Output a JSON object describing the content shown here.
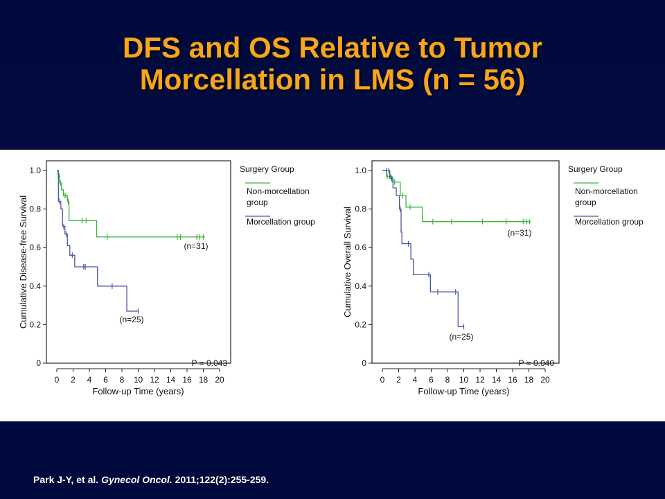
{
  "slide": {
    "title_line1": "DFS and OS Relative to Tumor",
    "title_line2": "Morcellation in LMS (n = 56)",
    "citation_pre": "Park J-Y, et al. ",
    "citation_journal": "Gynecol Oncol.",
    "citation_post": " 2011;122(2):255-259."
  },
  "colors": {
    "title": "#f7a51c",
    "background": "#00073a",
    "non_morcellation": "#3cb53c",
    "morcellation": "#4a55a8"
  },
  "chart_data": [
    {
      "type": "line",
      "step": true,
      "ylabel": "Cumulative Disease-free Survival",
      "xlabel": "Follow-up Time (years)",
      "xlim": [
        0,
        20
      ],
      "ylim": [
        0,
        1.0
      ],
      "x_ticks": [
        "0",
        "2",
        "4",
        "6",
        "8",
        "10",
        "12",
        "14",
        "16",
        "18",
        "20"
      ],
      "y_ticks": [
        "0",
        "0.2",
        "0.4",
        "0.6",
        "0.8",
        "1.0"
      ],
      "legend_title": "Surgery Group",
      "p_value": "P = 0.043",
      "series": [
        {
          "name": "Non-morcellation group",
          "color": "non_morcellation",
          "n_label": "(n=31)",
          "points": [
            [
              0,
              1.0
            ],
            [
              0.15,
              0.97
            ],
            [
              0.35,
              0.935
            ],
            [
              0.55,
              0.9
            ],
            [
              0.8,
              0.87
            ],
            [
              1.3,
              0.84
            ],
            [
              1.5,
              0.74
            ],
            [
              4.9,
              0.655
            ],
            [
              18.2,
              0.655
            ]
          ],
          "censored": [
            [
              0.3,
              0.97
            ],
            [
              0.45,
              0.935
            ],
            [
              0.9,
              0.87
            ],
            [
              1.1,
              0.87
            ],
            [
              1.4,
              0.84
            ],
            [
              3.1,
              0.74
            ],
            [
              3.6,
              0.74
            ],
            [
              6.2,
              0.655
            ],
            [
              14.8,
              0.655
            ],
            [
              15.2,
              0.655
            ],
            [
              17.2,
              0.655
            ],
            [
              17.5,
              0.655
            ],
            [
              18.0,
              0.655
            ]
          ]
        },
        {
          "name": "Morcellation group",
          "color": "morcellation",
          "n_label": "(n=25)",
          "points": [
            [
              0,
              1.0
            ],
            [
              0.2,
              0.84
            ],
            [
              0.5,
              0.8
            ],
            [
              0.7,
              0.71
            ],
            [
              1.0,
              0.67
            ],
            [
              1.3,
              0.61
            ],
            [
              1.6,
              0.56
            ],
            [
              2.2,
              0.5
            ],
            [
              5.0,
              0.4
            ],
            [
              8.6,
              0.27
            ],
            [
              10.0,
              0.27
            ]
          ],
          "censored": [
            [
              0.35,
              0.84
            ],
            [
              0.85,
              0.71
            ],
            [
              1.15,
              0.67
            ],
            [
              1.9,
              0.56
            ],
            [
              3.3,
              0.5
            ],
            [
              3.5,
              0.5
            ],
            [
              6.8,
              0.4
            ],
            [
              10.0,
              0.27
            ]
          ]
        }
      ]
    },
    {
      "type": "line",
      "step": true,
      "ylabel": "Cumulative Overall Survival",
      "xlabel": "Follow-up Time (years)",
      "xlim": [
        0,
        20
      ],
      "ylim": [
        0,
        1.0
      ],
      "x_ticks": [
        "0",
        "2",
        "4",
        "6",
        "8",
        "10",
        "12",
        "14",
        "16",
        "18",
        "20"
      ],
      "y_ticks": [
        "0",
        "0.2",
        "0.4",
        "0.6",
        "0.8",
        "1.0"
      ],
      "legend_title": "Surgery Group",
      "p_value": "P = 0.040",
      "series": [
        {
          "name": "Non-morcellation group",
          "color": "non_morcellation",
          "n_label": "(n=31)",
          "points": [
            [
              0,
              1.0
            ],
            [
              0.5,
              0.97
            ],
            [
              1.2,
              0.94
            ],
            [
              2.2,
              0.87
            ],
            [
              2.9,
              0.81
            ],
            [
              4.9,
              0.735
            ],
            [
              18.2,
              0.735
            ]
          ],
          "censored": [
            [
              0.6,
              0.97
            ],
            [
              1.0,
              0.97
            ],
            [
              1.5,
              0.94
            ],
            [
              2.5,
              0.87
            ],
            [
              3.4,
              0.81
            ],
            [
              6.2,
              0.735
            ],
            [
              8.5,
              0.735
            ],
            [
              12.3,
              0.735
            ],
            [
              15.2,
              0.735
            ],
            [
              17.3,
              0.735
            ],
            [
              17.7,
              0.735
            ],
            [
              18.1,
              0.735
            ]
          ]
        },
        {
          "name": "Morcellation group",
          "color": "morcellation",
          "n_label": "(n=25)",
          "points": [
            [
              0,
              1.0
            ],
            [
              0.9,
              0.96
            ],
            [
              1.3,
              0.91
            ],
            [
              1.7,
              0.87
            ],
            [
              2.1,
              0.8
            ],
            [
              2.3,
              0.68
            ],
            [
              2.4,
              0.62
            ],
            [
              3.5,
              0.54
            ],
            [
              3.8,
              0.46
            ],
            [
              5.9,
              0.37
            ],
            [
              9.3,
              0.19
            ],
            [
              10.0,
              0.19
            ]
          ],
          "censored": [
            [
              0.5,
              1.0
            ],
            [
              0.8,
              1.0
            ],
            [
              1.1,
              0.96
            ],
            [
              2.2,
              0.8
            ],
            [
              3.2,
              0.62
            ],
            [
              5.7,
              0.46
            ],
            [
              6.8,
              0.37
            ],
            [
              9.0,
              0.37
            ],
            [
              10.0,
              0.19
            ]
          ]
        }
      ]
    }
  ]
}
